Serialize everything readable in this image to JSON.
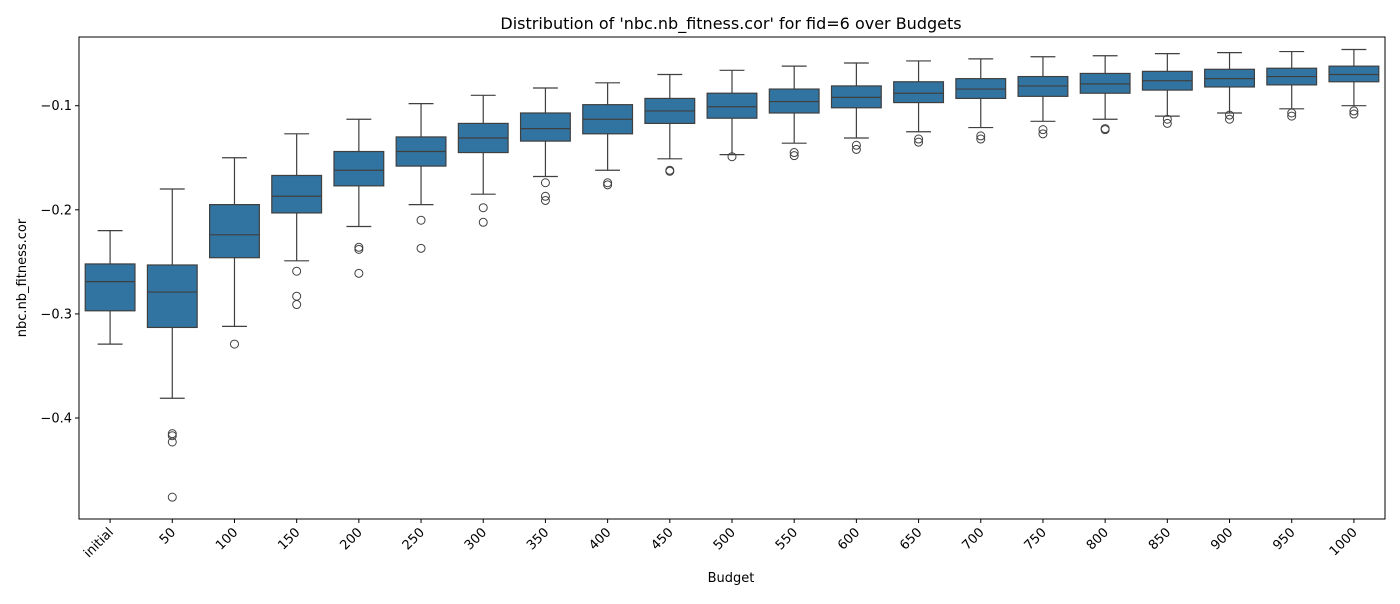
{
  "chart_data": {
    "type": "boxplot",
    "title": "Distribution of 'nbc.nb_fitness.cor' for fid=6 over Budgets",
    "xlabel": "Budget",
    "ylabel": "nbc.nb_fitness.cor",
    "ylim": [
      -0.497,
      -0.034
    ],
    "yticks": [
      -0.4,
      -0.3,
      -0.2,
      -0.1
    ],
    "ytick_labels": [
      "−0.4",
      "−0.3",
      "−0.2",
      "−0.1"
    ],
    "grid": false,
    "color": "#3274a1",
    "edge_color": "#3f3f3f",
    "categories": [
      "initial",
      "50",
      "100",
      "150",
      "200",
      "250",
      "300",
      "350",
      "400",
      "450",
      "500",
      "550",
      "600",
      "650",
      "700",
      "750",
      "800",
      "850",
      "900",
      "950",
      "1000"
    ],
    "boxes": [
      {
        "whislo": -0.329,
        "q1": -0.297,
        "med": -0.269,
        "q3": -0.252,
        "whishi": -0.22,
        "fliers": []
      },
      {
        "whislo": -0.381,
        "q1": -0.313,
        "med": -0.279,
        "q3": -0.253,
        "whishi": -0.18,
        "fliers": [
          -0.415,
          -0.417,
          -0.423,
          -0.476
        ]
      },
      {
        "whislo": -0.312,
        "q1": -0.246,
        "med": -0.224,
        "q3": -0.195,
        "whishi": -0.15,
        "fliers": [
          -0.329
        ]
      },
      {
        "whislo": -0.249,
        "q1": -0.203,
        "med": -0.187,
        "q3": -0.167,
        "whishi": -0.127,
        "fliers": [
          -0.259,
          -0.283,
          -0.291
        ]
      },
      {
        "whislo": -0.216,
        "q1": -0.177,
        "med": -0.162,
        "q3": -0.144,
        "whishi": -0.113,
        "fliers": [
          -0.236,
          -0.238,
          -0.261
        ]
      },
      {
        "whislo": -0.195,
        "q1": -0.158,
        "med": -0.144,
        "q3": -0.13,
        "whishi": -0.098,
        "fliers": [
          -0.21,
          -0.237
        ]
      },
      {
        "whislo": -0.185,
        "q1": -0.145,
        "med": -0.131,
        "q3": -0.117,
        "whishi": -0.09,
        "fliers": [
          -0.198,
          -0.212
        ]
      },
      {
        "whislo": -0.168,
        "q1": -0.134,
        "med": -0.122,
        "q3": -0.107,
        "whishi": -0.083,
        "fliers": [
          -0.174,
          -0.187,
          -0.191
        ]
      },
      {
        "whislo": -0.162,
        "q1": -0.127,
        "med": -0.113,
        "q3": -0.099,
        "whishi": -0.078,
        "fliers": [
          -0.174,
          -0.176
        ]
      },
      {
        "whislo": -0.151,
        "q1": -0.117,
        "med": -0.105,
        "q3": -0.093,
        "whishi": -0.07,
        "fliers": [
          -0.162,
          -0.163
        ]
      },
      {
        "whislo": -0.147,
        "q1": -0.112,
        "med": -0.101,
        "q3": -0.088,
        "whishi": -0.066,
        "fliers": [
          -0.149
        ]
      },
      {
        "whislo": -0.136,
        "q1": -0.107,
        "med": -0.096,
        "q3": -0.084,
        "whishi": -0.062,
        "fliers": [
          -0.145,
          -0.148
        ]
      },
      {
        "whislo": -0.131,
        "q1": -0.102,
        "med": -0.092,
        "q3": -0.081,
        "whishi": -0.059,
        "fliers": [
          -0.138,
          -0.142
        ]
      },
      {
        "whislo": -0.125,
        "q1": -0.097,
        "med": -0.088,
        "q3": -0.077,
        "whishi": -0.057,
        "fliers": [
          -0.132,
          -0.135
        ]
      },
      {
        "whislo": -0.121,
        "q1": -0.093,
        "med": -0.084,
        "q3": -0.074,
        "whishi": -0.055,
        "fliers": [
          -0.129,
          -0.132
        ]
      },
      {
        "whislo": -0.115,
        "q1": -0.091,
        "med": -0.081,
        "q3": -0.072,
        "whishi": -0.053,
        "fliers": [
          -0.123,
          -0.127
        ]
      },
      {
        "whislo": -0.113,
        "q1": -0.088,
        "med": -0.079,
        "q3": -0.069,
        "whishi": -0.052,
        "fliers": [
          -0.122,
          -0.123
        ]
      },
      {
        "whislo": -0.11,
        "q1": -0.085,
        "med": -0.076,
        "q3": -0.067,
        "whishi": -0.05,
        "fliers": [
          -0.113,
          -0.117
        ]
      },
      {
        "whislo": -0.107,
        "q1": -0.082,
        "med": -0.074,
        "q3": -0.065,
        "whishi": -0.049,
        "fliers": [
          -0.109,
          -0.113
        ]
      },
      {
        "whislo": -0.103,
        "q1": -0.08,
        "med": -0.072,
        "q3": -0.064,
        "whishi": -0.048,
        "fliers": [
          -0.107,
          -0.11
        ]
      },
      {
        "whislo": -0.1,
        "q1": -0.077,
        "med": -0.07,
        "q3": -0.062,
        "whishi": -0.046,
        "fliers": [
          -0.105,
          -0.108
        ]
      }
    ]
  }
}
